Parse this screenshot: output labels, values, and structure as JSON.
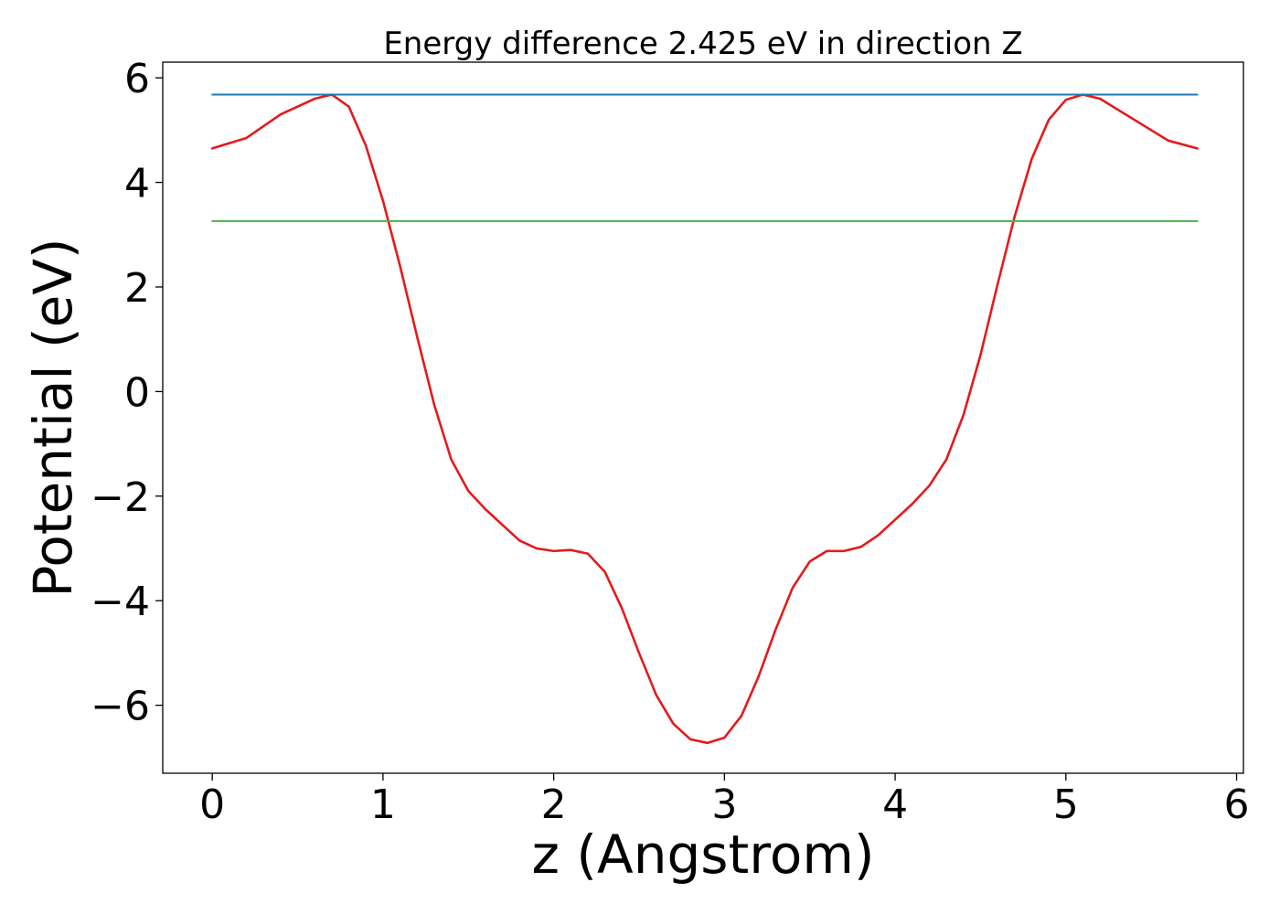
{
  "chart_data": {
    "type": "line",
    "title": "Energy difference 2.425 eV in direction Z",
    "xlabel": "z (Angstrom)",
    "ylabel": "Potential (eV)",
    "xlim": [
      -0.29,
      6.04
    ],
    "ylim": [
      -7.3,
      6.3
    ],
    "xticks": [
      0,
      1,
      2,
      3,
      4,
      5,
      6
    ],
    "xtick_labels": [
      "0",
      "1",
      "2",
      "3",
      "4",
      "5",
      "6"
    ],
    "yticks": [
      6,
      4,
      2,
      0,
      -2,
      -4,
      -6
    ],
    "ytick_labels": [
      "6",
      "4",
      "2",
      "0",
      "−2",
      "−4",
      "−6"
    ],
    "grid": false,
    "legend": "none",
    "series": [
      {
        "color": "#e41a1c",
        "x": [
          0,
          0.2,
          0.4,
          0.6,
          0.7,
          0.8,
          0.9,
          1.0,
          1.1,
          1.2,
          1.3,
          1.4,
          1.5,
          1.6,
          1.7,
          1.8,
          1.9,
          2.0,
          2.1,
          2.2,
          2.3,
          2.4,
          2.5,
          2.6,
          2.7,
          2.8,
          2.9,
          3.0,
          3.1,
          3.2,
          3.3,
          3.4,
          3.5,
          3.6,
          3.7,
          3.8,
          3.9,
          4.0,
          4.1,
          4.2,
          4.3,
          4.4,
          4.5,
          4.6,
          4.7,
          4.8,
          4.9,
          5.0,
          5.1,
          5.2,
          5.4,
          5.6,
          5.77
        ],
        "values": [
          4.65,
          4.85,
          5.3,
          5.6,
          5.68,
          5.45,
          4.7,
          3.65,
          2.4,
          1.05,
          -0.25,
          -1.3,
          -1.9,
          -2.25,
          -2.55,
          -2.85,
          -3.0,
          -3.05,
          -3.03,
          -3.1,
          -3.45,
          -4.15,
          -5.0,
          -5.8,
          -6.35,
          -6.65,
          -6.72,
          -6.62,
          -6.2,
          -5.45,
          -4.55,
          -3.75,
          -3.25,
          -3.05,
          -3.05,
          -2.97,
          -2.75,
          -2.45,
          -2.15,
          -1.8,
          -1.3,
          -0.45,
          0.7,
          2.05,
          3.35,
          4.45,
          5.2,
          5.58,
          5.68,
          5.6,
          5.2,
          4.8,
          4.65
        ]
      },
      {
        "color": "#1f77b4",
        "x": [
          0,
          5.77
        ],
        "values": [
          5.68,
          5.68
        ]
      },
      {
        "color": "#4daf4a",
        "x": [
          0,
          5.77
        ],
        "values": [
          3.26,
          3.26
        ]
      }
    ]
  }
}
